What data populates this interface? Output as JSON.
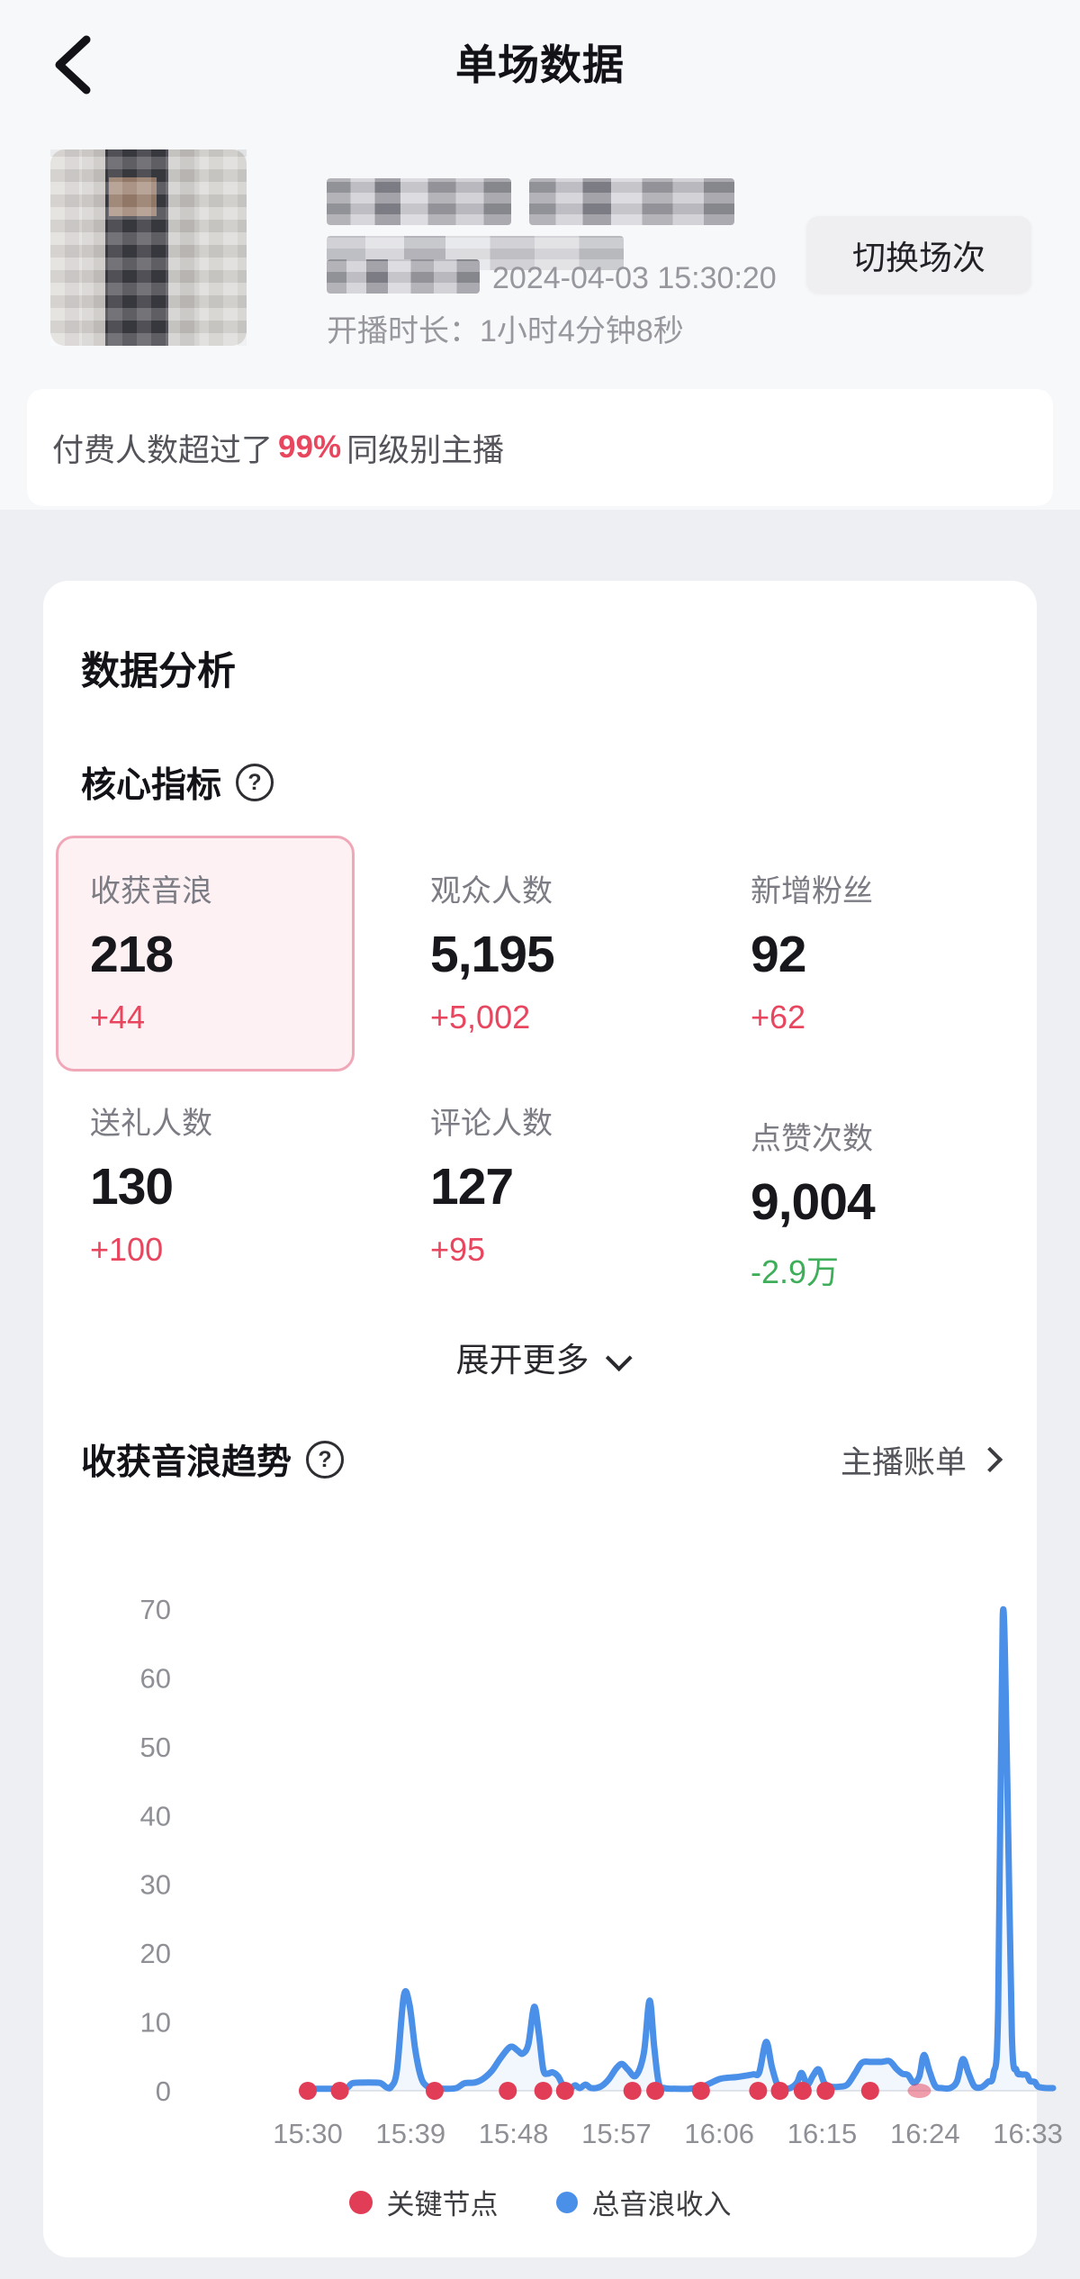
{
  "header": {
    "title": "单场数据"
  },
  "profile": {
    "start_time": "2024-04-03 15:30:20",
    "duration": "开播时长：1小时4分钟8秒",
    "switch_button": "切换场次"
  },
  "banner": {
    "prefix": "付费人数超过了",
    "highlight": "99%",
    "suffix": "同级别主播"
  },
  "analysis": {
    "title": "数据分析",
    "core_title": "核心指标",
    "expand_more": "展开更多",
    "metrics": [
      {
        "label": "收获音浪",
        "value": "218",
        "delta": "+44",
        "delta_color": "red",
        "selected": true
      },
      {
        "label": "观众人数",
        "value": "5,195",
        "delta": "+5,002",
        "delta_color": "red",
        "selected": false
      },
      {
        "label": "新增粉丝",
        "value": "92",
        "delta": "+62",
        "delta_color": "red",
        "selected": false
      },
      {
        "label": "送礼人数",
        "value": "130",
        "delta": "+100",
        "delta_color": "red",
        "selected": false
      },
      {
        "label": "评论人数",
        "value": "127",
        "delta": "+95",
        "delta_color": "red",
        "selected": false
      },
      {
        "label": "点赞次数",
        "value": "9,004",
        "delta": "-2.9万",
        "delta_color": "green",
        "selected": false
      }
    ]
  },
  "trend": {
    "title": "收获音浪趋势",
    "link": "主播账单"
  },
  "chart_data": {
    "type": "line",
    "title": "收获音浪趋势",
    "x_start_label": "15:30",
    "x_tick_minutes": [
      0,
      9,
      18,
      27,
      36,
      45,
      54,
      63
    ],
    "x_ticks": [
      "15:30",
      "15:39",
      "15:48",
      "15:57",
      "16:06",
      "16:15",
      "16:24",
      "16:33"
    ],
    "y_ticks": [
      0,
      10,
      20,
      30,
      40,
      50,
      60,
      70
    ],
    "ylim": [
      0,
      70
    ],
    "grid": "baseline-only",
    "legend_position": "bottom-center",
    "series": [
      {
        "name": "总音浪收入",
        "color": "#4a8fe8",
        "points": [
          [
            0,
            0.3
          ],
          [
            1,
            0.3
          ],
          [
            2,
            0.3
          ],
          [
            3,
            0.3
          ],
          [
            3.5,
            0.5
          ],
          [
            3.9,
            1.1
          ],
          [
            4.8,
            1.2
          ],
          [
            5.8,
            1.2
          ],
          [
            6.4,
            1.1
          ],
          [
            6.9,
            0.5
          ],
          [
            7.3,
            0.6
          ],
          [
            7.8,
            3
          ],
          [
            8.4,
            13.8
          ],
          [
            8.9,
            12.5
          ],
          [
            9.4,
            6
          ],
          [
            9.9,
            2
          ],
          [
            10.4,
            0.7
          ],
          [
            11.1,
            0.4
          ],
          [
            12,
            0.3
          ],
          [
            13,
            0.4
          ],
          [
            13.7,
            1.1
          ],
          [
            14.6,
            1.2
          ],
          [
            15.3,
            1.7
          ],
          [
            16.1,
            2.9
          ],
          [
            16.8,
            4.6
          ],
          [
            17.5,
            6.1
          ],
          [
            17.9,
            6.4
          ],
          [
            18.4,
            5.8
          ],
          [
            18.8,
            5.4
          ],
          [
            19.3,
            6.8
          ],
          [
            19.8,
            12.2
          ],
          [
            20.2,
            8.5
          ],
          [
            20.6,
            3.1
          ],
          [
            21,
            2.5
          ],
          [
            21.4,
            2.7
          ],
          [
            21.9,
            2.1
          ],
          [
            22.4,
            0.6
          ],
          [
            23,
            0.4
          ],
          [
            23.4,
            0.8
          ],
          [
            23.8,
            0.4
          ],
          [
            24.3,
            0.9
          ],
          [
            24.8,
            0.4
          ],
          [
            25.6,
            0.6
          ],
          [
            26.3,
            1.6
          ],
          [
            27,
            3.3
          ],
          [
            27.5,
            3.9
          ],
          [
            28,
            3.1
          ],
          [
            28.7,
            2.2
          ],
          [
            29.4,
            5.5
          ],
          [
            29.9,
            13.1
          ],
          [
            30.3,
            6.5
          ],
          [
            30.7,
            1.2
          ],
          [
            31.2,
            0.4
          ],
          [
            32.2,
            0.3
          ],
          [
            33.4,
            0.3
          ],
          [
            34.5,
            0.6
          ],
          [
            35.2,
            1.1
          ],
          [
            36,
            1.7
          ],
          [
            36.7,
            1.9
          ],
          [
            37.5,
            2
          ],
          [
            38.3,
            2.2
          ],
          [
            39,
            2.4
          ],
          [
            39.5,
            2.7
          ],
          [
            40.1,
            7.1
          ],
          [
            40.6,
            3.5
          ],
          [
            41.1,
            0.8
          ],
          [
            41.6,
            0.4
          ],
          [
            42.2,
            0.4
          ],
          [
            42.8,
            1.2
          ],
          [
            43.2,
            2.6
          ],
          [
            43.7,
            0.9
          ],
          [
            44.2,
            2.2
          ],
          [
            44.7,
            3.1
          ],
          [
            45.2,
            1.1
          ],
          [
            45.8,
            0.6
          ],
          [
            46.5,
            0.6
          ],
          [
            47.2,
            0.9
          ],
          [
            47.9,
            2.6
          ],
          [
            48.5,
            4.1
          ],
          [
            49.3,
            4.2
          ],
          [
            50.2,
            4.2
          ],
          [
            50.9,
            4.3
          ],
          [
            51.5,
            3.2
          ],
          [
            52,
            2.5
          ],
          [
            52.5,
            2.3
          ],
          [
            53,
            1.2
          ],
          [
            53.5,
            2.1
          ],
          [
            53.9,
            5.2
          ],
          [
            54.4,
            2.8
          ],
          [
            54.9,
            0.7
          ],
          [
            55.5,
            0.4
          ],
          [
            56.2,
            0.4
          ],
          [
            56.8,
            1.4
          ],
          [
            57.3,
            4.6
          ],
          [
            57.8,
            2.6
          ],
          [
            58.3,
            0.7
          ],
          [
            58.9,
            0.5
          ],
          [
            59.5,
            1.3
          ],
          [
            60,
            2.5
          ],
          [
            60.4,
            12
          ],
          [
            60.8,
            69
          ],
          [
            61.2,
            45
          ],
          [
            61.6,
            8
          ],
          [
            62,
            3
          ],
          [
            62.4,
            2.4
          ],
          [
            62.9,
            2.3
          ],
          [
            63.2,
            1.4
          ],
          [
            63.6,
            1.3
          ],
          [
            63.9,
            0.6
          ],
          [
            64.6,
            0.4
          ],
          [
            65.2,
            0.4
          ]
        ]
      }
    ],
    "key_nodes": {
      "name": "关键节点",
      "color": "#e23d57",
      "times": [
        0,
        2.8,
        11.1,
        17.5,
        20.6,
        22.5,
        28.4,
        30.4,
        34.4,
        39.4,
        41.3,
        43.3,
        45.3,
        49.2
      ],
      "faded_time": 53.5
    }
  },
  "colors": {
    "accent_red": "#e8465e",
    "green": "#3fae5a",
    "line_blue": "#4a8fe8",
    "dot_red": "#e23d57",
    "axis_gray": "#8e9095"
  }
}
